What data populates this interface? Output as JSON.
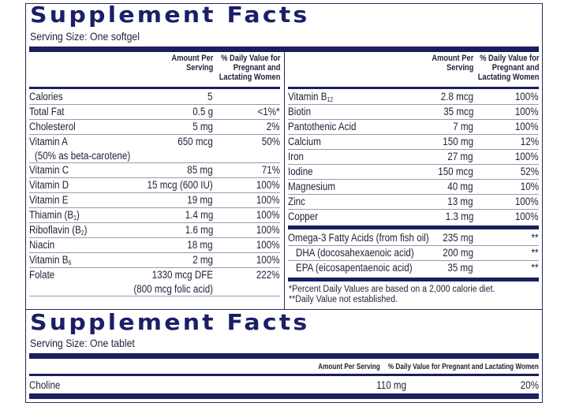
{
  "panel1": {
    "title": "Supplement Facts",
    "serving_size": "Serving Size: One softgel",
    "left_headers": {
      "amount": [
        "Amount Per",
        "Serving"
      ],
      "dv": [
        "% Daily Value for",
        "Pregnant and",
        "Lactating Women"
      ]
    },
    "right_headers": {
      "amount": [
        "Amount Per",
        "Serving"
      ],
      "dv": [
        "% Daily Value for",
        "Pregnant and",
        "Lactating Women"
      ]
    },
    "left_rows": [
      {
        "name": "Calories",
        "amount": "5",
        "dv": ""
      },
      {
        "name": "Total Fat",
        "amount": "0.5 g",
        "dv": "<1%*"
      },
      {
        "name": "Cholesterol",
        "amount": "5 mg",
        "dv": "2%"
      },
      {
        "name": "Vitamin A",
        "note": "(50% as beta-carotene)",
        "amount": "650 mcg",
        "dv": "50%"
      },
      {
        "name": "Vitamin C",
        "amount": "85 mg",
        "dv": "71%"
      },
      {
        "name": "Vitamin D",
        "amount": "15 mcg (600 IU)",
        "dv": "100%"
      },
      {
        "name": "Vitamin E",
        "amount": "19 mg",
        "dv": "100%"
      },
      {
        "name": "Thiamin (B",
        "sub": "1",
        "suffix": ")",
        "amount": "1.4 mg",
        "dv": "100%"
      },
      {
        "name": "Riboflavin (B",
        "sub": "2",
        "suffix": ")",
        "amount": "1.6 mg",
        "dv": "100%"
      },
      {
        "name": "Niacin",
        "amount": "18 mg",
        "dv": "100%"
      },
      {
        "name": "Vitamin B",
        "sub": "6",
        "suffix": "",
        "amount": "2 mg",
        "dv": "100%"
      },
      {
        "name": "Folate",
        "amount": "1330 mcg DFE",
        "amount_note": "(800 mcg folic acid)",
        "dv": "222%"
      }
    ],
    "right_rows": [
      {
        "name": "Vitamin B",
        "sub": "12",
        "suffix": "",
        "amount": "2.8 mcg",
        "dv": "100%"
      },
      {
        "name": "Biotin",
        "amount": "35 mcg",
        "dv": "100%"
      },
      {
        "name": "Pantothenic Acid",
        "amount": "7 mg",
        "dv": "100%"
      },
      {
        "name": "Calcium",
        "amount": "150 mg",
        "dv": "12%"
      },
      {
        "name": "Iron",
        "amount": "27 mg",
        "dv": "100%"
      },
      {
        "name": "Iodine",
        "amount": "150 mcg",
        "dv": "52%"
      },
      {
        "name": "Magnesium",
        "amount": "40 mg",
        "dv": "10%"
      },
      {
        "name": "Zinc",
        "amount": "13 mg",
        "dv": "100%"
      },
      {
        "name": "Copper",
        "amount": "1.3 mg",
        "dv": "100%"
      }
    ],
    "omega_rows": [
      {
        "name": "Omega-3 Fatty Acids (from fish oil)",
        "amount": "235 mg",
        "dv": "**"
      },
      {
        "name": "DHA (docosahexaenoic acid)",
        "amount": "200 mg",
        "dv": "**",
        "indent": true
      },
      {
        "name": "EPA (eicosapentaenoic acid)",
        "amount": "35 mg",
        "dv": "**",
        "indent": true
      }
    ],
    "footnotes": [
      "*Percent Daily Values are based on a 2,000 calorie diet.",
      "**Daily Value not established."
    ]
  },
  "panel2": {
    "title": "Supplement Facts",
    "serving_size": "Serving Size: One tablet",
    "headers": {
      "amount": "Amount Per Serving",
      "dv": "% Daily Value for Pregnant and Lactating Women"
    },
    "rows": [
      {
        "name": "Choline",
        "amount": "110 mg",
        "dv": "20%"
      }
    ]
  },
  "colors": {
    "title_navy": "#1b1f66",
    "band_navy": "#1b1f5e",
    "text": "#1f1f3a",
    "rule_gray": "#9a9aa8"
  }
}
